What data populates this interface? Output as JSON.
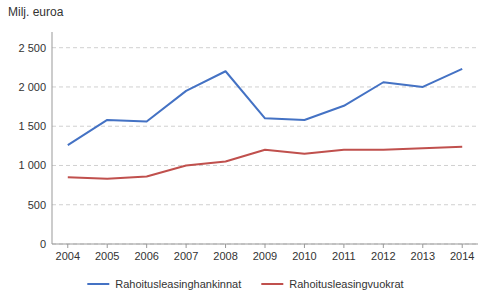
{
  "chart_data": {
    "type": "line",
    "ylabel": "Milj. euroa",
    "x": [
      2004,
      2005,
      2006,
      2007,
      2008,
      2009,
      2010,
      2011,
      2012,
      2013,
      2014
    ],
    "xlim": [
      2003.6,
      2014.4
    ],
    "xticks": [
      2004,
      2005,
      2006,
      2007,
      2008,
      2009,
      2010,
      2011,
      2012,
      2013,
      2014
    ],
    "ylim": [
      0,
      2700
    ],
    "yticks": [
      0,
      500,
      {
        "value": 1000,
        "label": "1 000"
      },
      {
        "value": 1500,
        "label": "1 500"
      },
      {
        "value": 2000,
        "label": "2 000"
      },
      {
        "value": 2500,
        "label": "2 500"
      }
    ],
    "grid": true,
    "legend": "bottom",
    "series": [
      {
        "name": "Rahoitusleasinghankinnat",
        "color": "#4472C4",
        "values": [
          1260,
          1580,
          1560,
          1950,
          2200,
          1600,
          1580,
          1760,
          2060,
          2000,
          2230
        ]
      },
      {
        "name": "Rahoitusleasingvuokrat",
        "color": "#C0504D",
        "values": [
          850,
          830,
          860,
          1000,
          1050,
          1200,
          1150,
          1200,
          1200,
          1220,
          1240
        ]
      }
    ]
  }
}
